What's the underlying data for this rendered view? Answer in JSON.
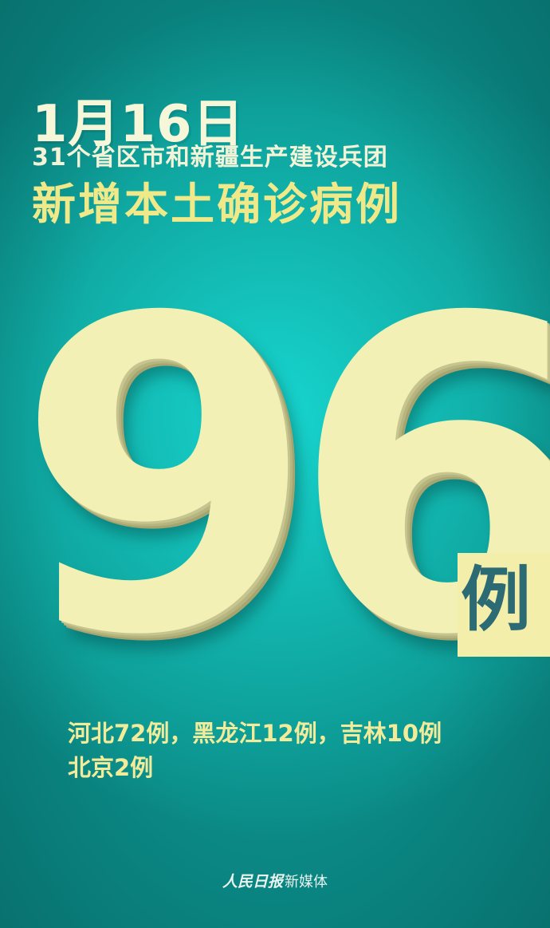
{
  "poster": {
    "date": "1月16日",
    "subtitle": "31个省区市和新疆生产建设兵团",
    "headline": "新增本土确诊病例",
    "count": "96",
    "unit": "例",
    "breakdown_line1": "河北72例，黑龙江12例，吉林10例",
    "breakdown_line2": "北京2例",
    "footer_logo": "人民日报",
    "footer_text": "新媒体"
  },
  "colors": {
    "background": "#13bdb6",
    "number": "#f2f0b4",
    "headline": "#f0e989",
    "unit_text": "#2c6a74"
  }
}
